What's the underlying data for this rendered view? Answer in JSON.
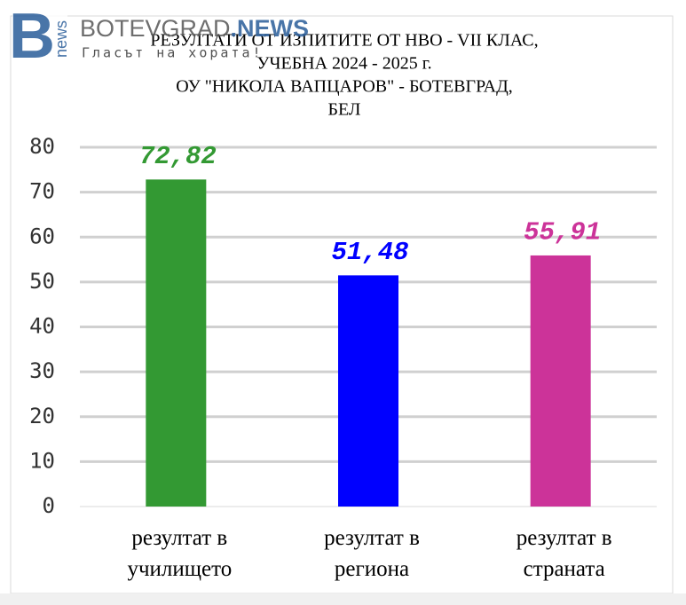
{
  "chart_data": {
    "type": "bar",
    "title": [
      "РЕЗУЛТАТИ ОТ ИЗПИТИТЕ ОТ НВО - VII КЛАС,",
      "УЧЕБНА 2024 - 2025 г.",
      "ОУ \"НИКОЛА ВАПЦАРОВ\" -  БОТЕВГРАД,",
      "БЕЛ"
    ],
    "categories": [
      "резултат в училището",
      "резултат в региона",
      "резултат в страната"
    ],
    "values": [
      72.82,
      51.48,
      55.91
    ],
    "value_labels": [
      "72,82",
      "51,48",
      "55,91"
    ],
    "colors": [
      "#339933",
      "#0000ff",
      "#cc3399"
    ],
    "ylim": [
      0,
      80
    ],
    "yticks": [
      0,
      10,
      20,
      30,
      40,
      50,
      60,
      70,
      80
    ],
    "grid": true
  },
  "watermark": {
    "logo_letter": "B",
    "logo_word": "news",
    "brand": "BOTEVGRAD",
    "brand_suffix": ".NEWS",
    "slogan": "Гласът на хората!"
  }
}
